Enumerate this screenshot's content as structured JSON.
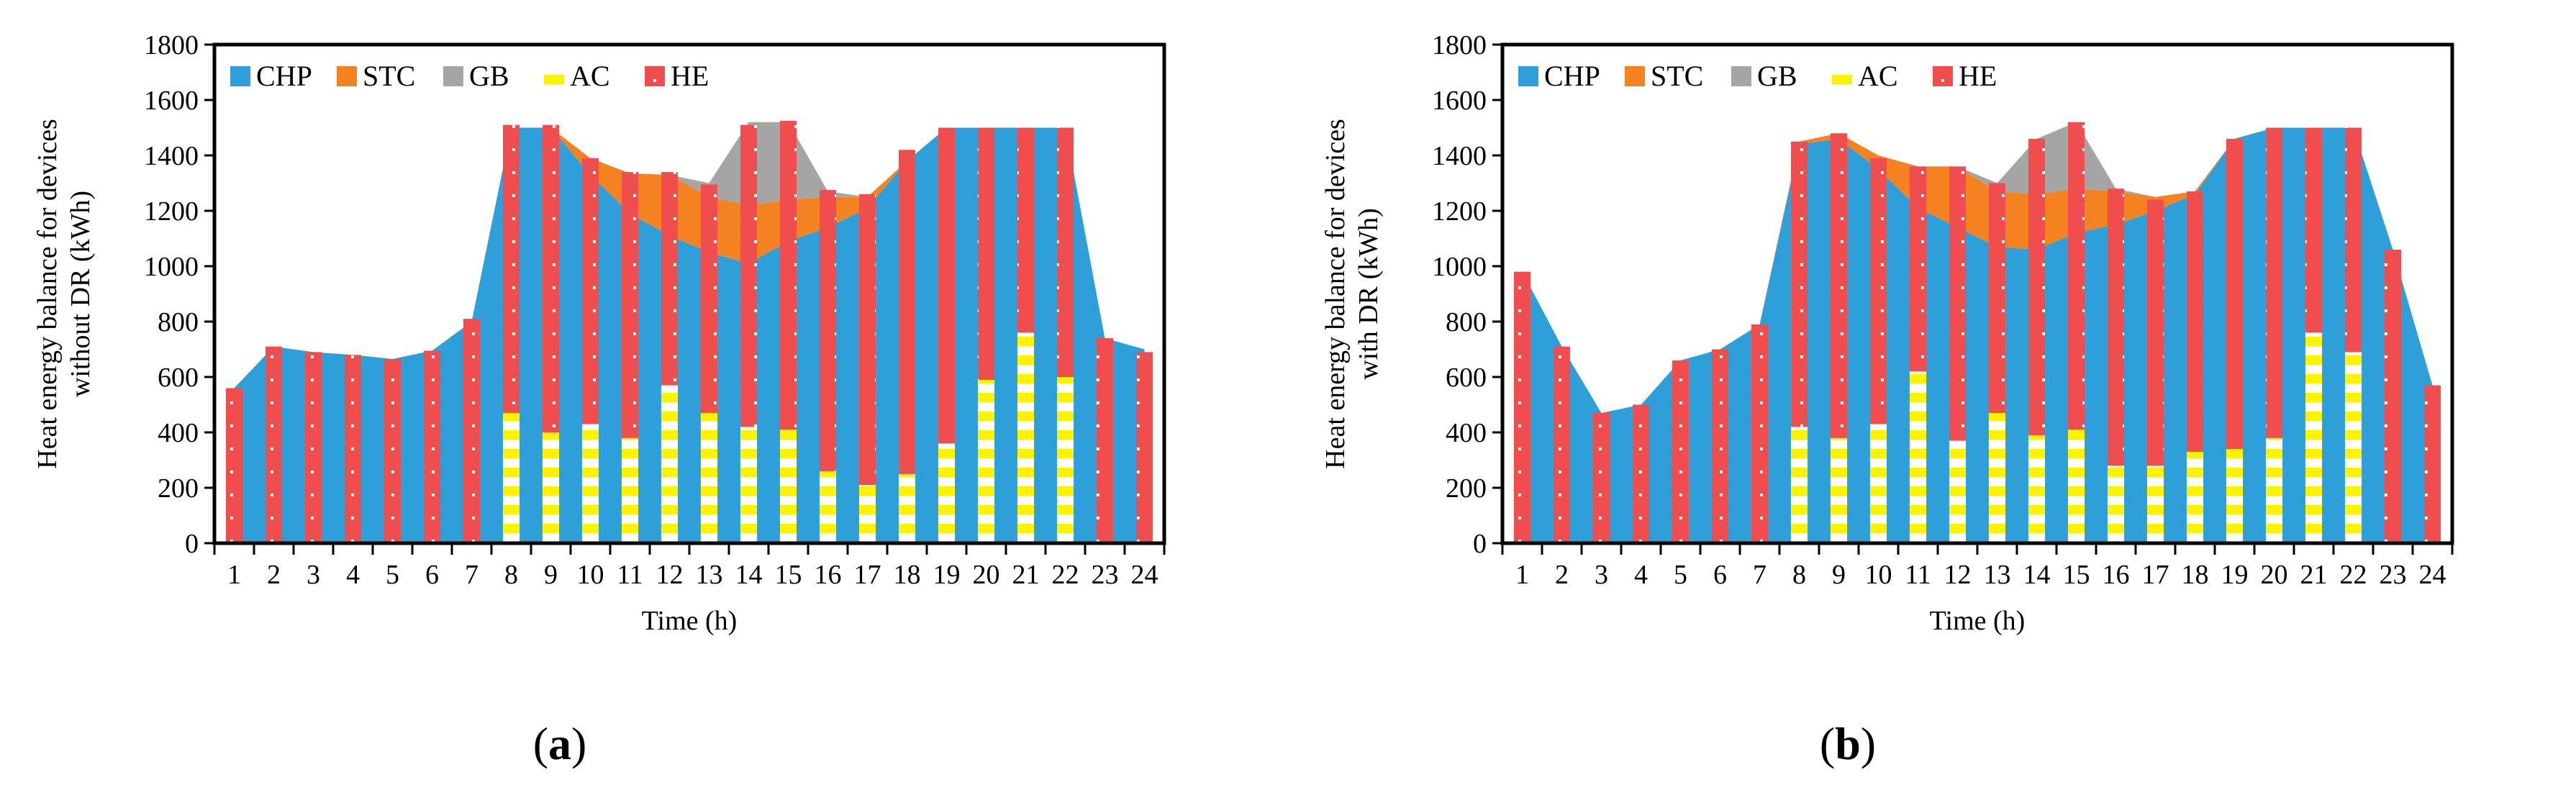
{
  "colors": {
    "CHP": "#2E9FD8",
    "STC": "#F58220",
    "GB": "#A5A5A5",
    "AC": "#FFF200",
    "HE": "#F04E4E",
    "frame": "#000000",
    "grid": "#D9D9D9"
  },
  "chart_data": [
    {
      "type": "area",
      "panel_label": "a",
      "panel_open": "(",
      "panel_close": ")",
      "xlabel": "Time (h)",
      "ylabel_lines": [
        "Heat energy balance for devices",
        "without DR (kWh)"
      ],
      "ylim": [
        0,
        1800
      ],
      "yticks": [
        0,
        200,
        400,
        600,
        800,
        1000,
        1200,
        1400,
        1600,
        1800
      ],
      "grid": false,
      "legend_position": "top-left",
      "x": [
        1,
        2,
        3,
        4,
        5,
        6,
        7,
        8,
        9,
        10,
        11,
        12,
        13,
        14,
        15,
        16,
        17,
        18,
        19,
        20,
        21,
        22,
        23,
        24
      ],
      "area_series": [
        {
          "name": "CHP",
          "values": [
            560,
            710,
            690,
            680,
            665,
            695,
            800,
            1500,
            1500,
            1330,
            1190,
            1110,
            1050,
            1010,
            1090,
            1140,
            1210,
            1380,
            1500,
            1500,
            1500,
            1500,
            740,
            700
          ]
        },
        {
          "name": "STC",
          "values": [
            0,
            0,
            0,
            0,
            0,
            0,
            0,
            0,
            0,
            60,
            145,
            220,
            200,
            210,
            150,
            110,
            40,
            0,
            0,
            0,
            0,
            0,
            0,
            0
          ]
        },
        {
          "name": "GB",
          "values": [
            0,
            0,
            0,
            0,
            0,
            0,
            0,
            0,
            0,
            0,
            0,
            0,
            50,
            300,
            280,
            20,
            0,
            0,
            0,
            0,
            0,
            0,
            0,
            0
          ]
        }
      ],
      "bar_series": [
        {
          "name": "AC",
          "values": [
            0,
            0,
            0,
            0,
            0,
            0,
            0,
            470,
            400,
            430,
            380,
            570,
            470,
            420,
            410,
            260,
            210,
            250,
            360,
            590,
            760,
            600,
            0,
            0
          ]
        },
        {
          "name": "HE",
          "values": [
            560,
            710,
            690,
            680,
            665,
            695,
            810,
            1040,
            1110,
            960,
            960,
            770,
            825,
            1090,
            1115,
            1015,
            1050,
            1170,
            1140,
            910,
            740,
            900,
            740,
            690
          ]
        }
      ],
      "legend": [
        "CHP",
        "STC",
        "GB",
        "AC",
        "HE"
      ]
    },
    {
      "type": "area",
      "panel_label": "b",
      "panel_open": "(",
      "panel_close": ")",
      "xlabel": "Time (h)",
      "ylabel_lines": [
        "Heat energy balance for devices",
        "with DR (kWh)"
      ],
      "ylim": [
        0,
        1800
      ],
      "yticks": [
        0,
        200,
        400,
        600,
        800,
        1000,
        1200,
        1400,
        1600,
        1800
      ],
      "grid": false,
      "legend_position": "top-left",
      "x": [
        1,
        2,
        3,
        4,
        5,
        6,
        7,
        8,
        9,
        10,
        11,
        12,
        13,
        14,
        15,
        16,
        17,
        18,
        19,
        20,
        21,
        22,
        23,
        24
      ],
      "area_series": [
        {
          "name": "CHP",
          "values": [
            980,
            710,
            470,
            500,
            660,
            700,
            790,
            1440,
            1460,
            1350,
            1210,
            1140,
            1070,
            1060,
            1120,
            1150,
            1200,
            1260,
            1460,
            1500,
            1500,
            1500,
            1060,
            570
          ]
        },
        {
          "name": "STC",
          "values": [
            0,
            0,
            0,
            0,
            0,
            0,
            0,
            10,
            20,
            50,
            150,
            220,
            200,
            200,
            160,
            120,
            50,
            10,
            0,
            0,
            0,
            0,
            0,
            0
          ]
        },
        {
          "name": "GB",
          "values": [
            0,
            0,
            0,
            0,
            0,
            0,
            0,
            0,
            0,
            0,
            0,
            0,
            30,
            200,
            240,
            10,
            0,
            0,
            0,
            0,
            0,
            0,
            0,
            0
          ]
        }
      ],
      "bar_series": [
        {
          "name": "AC",
          "values": [
            0,
            0,
            0,
            0,
            0,
            0,
            0,
            420,
            380,
            430,
            620,
            370,
            470,
            390,
            410,
            280,
            280,
            330,
            340,
            380,
            760,
            690,
            0,
            0
          ]
        },
        {
          "name": "HE",
          "values": [
            980,
            710,
            470,
            500,
            660,
            700,
            790,
            1030,
            1100,
            960,
            740,
            990,
            830,
            1070,
            1110,
            1000,
            960,
            940,
            1120,
            1120,
            740,
            810,
            1060,
            570
          ]
        }
      ],
      "legend": [
        "CHP",
        "STC",
        "GB",
        "AC",
        "HE"
      ]
    }
  ]
}
